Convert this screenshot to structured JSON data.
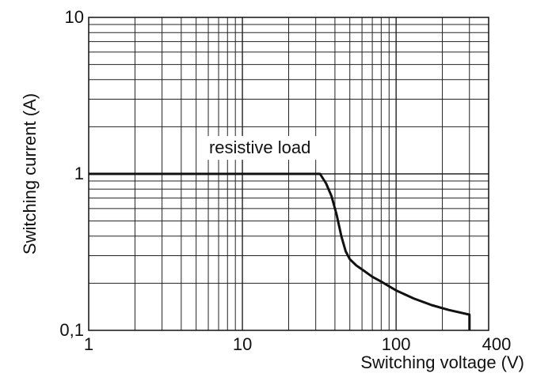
{
  "chart_data": {
    "type": "line",
    "title": "",
    "xlabel": "Switching voltage (V)",
    "ylabel": "Switching current (A)",
    "x_scale": "log",
    "y_scale": "log",
    "xlim": [
      1,
      400
    ],
    "ylim": [
      0.1,
      10
    ],
    "grid": true,
    "x_ticks": [
      {
        "value": 1,
        "label": "1"
      },
      {
        "value": 10,
        "label": "10"
      },
      {
        "value": 100,
        "label": "100"
      },
      {
        "value": 400,
        "label": "400"
      }
    ],
    "y_ticks": [
      {
        "value": 0.1,
        "label": "0,1"
      },
      {
        "value": 1,
        "label": "1"
      },
      {
        "value": 10,
        "label": "10"
      }
    ],
    "series": [
      {
        "name": "",
        "x": [
          1,
          30,
          32,
          35,
          38,
          41,
          44,
          47,
          50,
          55,
          60,
          70,
          80,
          100,
          130,
          170,
          220,
          300,
          300
        ],
        "y": [
          1,
          1,
          1,
          0.87,
          0.72,
          0.55,
          0.4,
          0.32,
          0.285,
          0.26,
          0.245,
          0.22,
          0.205,
          0.18,
          0.16,
          0.145,
          0.135,
          0.126,
          0.1
        ]
      }
    ],
    "annotations": [
      {
        "text": "resistive load",
        "x": 13,
        "y": 1.35
      }
    ],
    "colors": {
      "line": "#111111",
      "grid": "#222222"
    }
  }
}
